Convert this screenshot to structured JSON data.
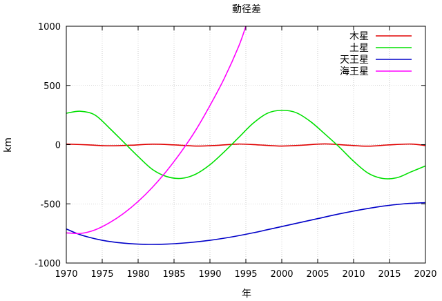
{
  "chart_data": {
    "type": "line",
    "title": "動径差",
    "xlabel": "年",
    "ylabel": "km",
    "xlim": [
      1970,
      2020
    ],
    "ylim": [
      -1000,
      1000
    ],
    "xticks": [
      "1970",
      "1975",
      "1980",
      "1985",
      "1990",
      "1995",
      "2000",
      "2005",
      "2010",
      "2015",
      "2020"
    ],
    "yticks": [
      "1000",
      "500",
      "0",
      "-500",
      "-1000"
    ],
    "grid": true,
    "legend": "top-right",
    "series": [
      {
        "name": "木星",
        "color": "#e00000",
        "x": [
          1970,
          1973,
          1976,
          1979,
          1982,
          1985,
          1988,
          1991,
          1994,
          1997,
          2000,
          2003,
          2006,
          2009,
          2012,
          2015,
          2018,
          2020
        ],
        "y": [
          5,
          -2,
          -10,
          -5,
          4,
          -2,
          -12,
          -6,
          5,
          -3,
          -12,
          -4,
          6,
          -4,
          -13,
          -2,
          5,
          -8
        ]
      },
      {
        "name": "土星",
        "color": "#00e000",
        "x": [
          1970,
          1972,
          1974,
          1976,
          1978,
          1980,
          1982,
          1984,
          1986,
          1988,
          1990,
          1992,
          1994,
          1996,
          1998,
          2000,
          2002,
          2004,
          2006,
          2008,
          2010,
          2012,
          2014,
          2016,
          2018,
          2020
        ],
        "y": [
          265,
          282,
          250,
          140,
          20,
          -100,
          -210,
          -270,
          -285,
          -250,
          -170,
          -60,
          60,
          180,
          265,
          290,
          270,
          195,
          90,
          -20,
          -140,
          -240,
          -285,
          -280,
          -230,
          -180
        ]
      },
      {
        "name": "天王星",
        "color": "#0000c8",
        "x": [
          1970,
          1972,
          1975,
          1978,
          1981,
          1984,
          1987,
          1990,
          1993,
          1996,
          1999,
          2002,
          2005,
          2008,
          2011,
          2014,
          2017,
          2020
        ],
        "y": [
          -712,
          -762,
          -808,
          -832,
          -842,
          -840,
          -828,
          -808,
          -780,
          -745,
          -705,
          -665,
          -625,
          -585,
          -550,
          -520,
          -500,
          -490
        ]
      },
      {
        "name": "海王星",
        "color": "#ff00ff",
        "x": [
          1970,
          1972,
          1974,
          1976,
          1978,
          1980,
          1982,
          1984,
          1986,
          1988,
          1990,
          1992,
          1994,
          1995
        ],
        "y": [
          -745,
          -750,
          -720,
          -660,
          -580,
          -480,
          -360,
          -220,
          -60,
          120,
          330,
          560,
          830,
          1000
        ]
      }
    ]
  }
}
